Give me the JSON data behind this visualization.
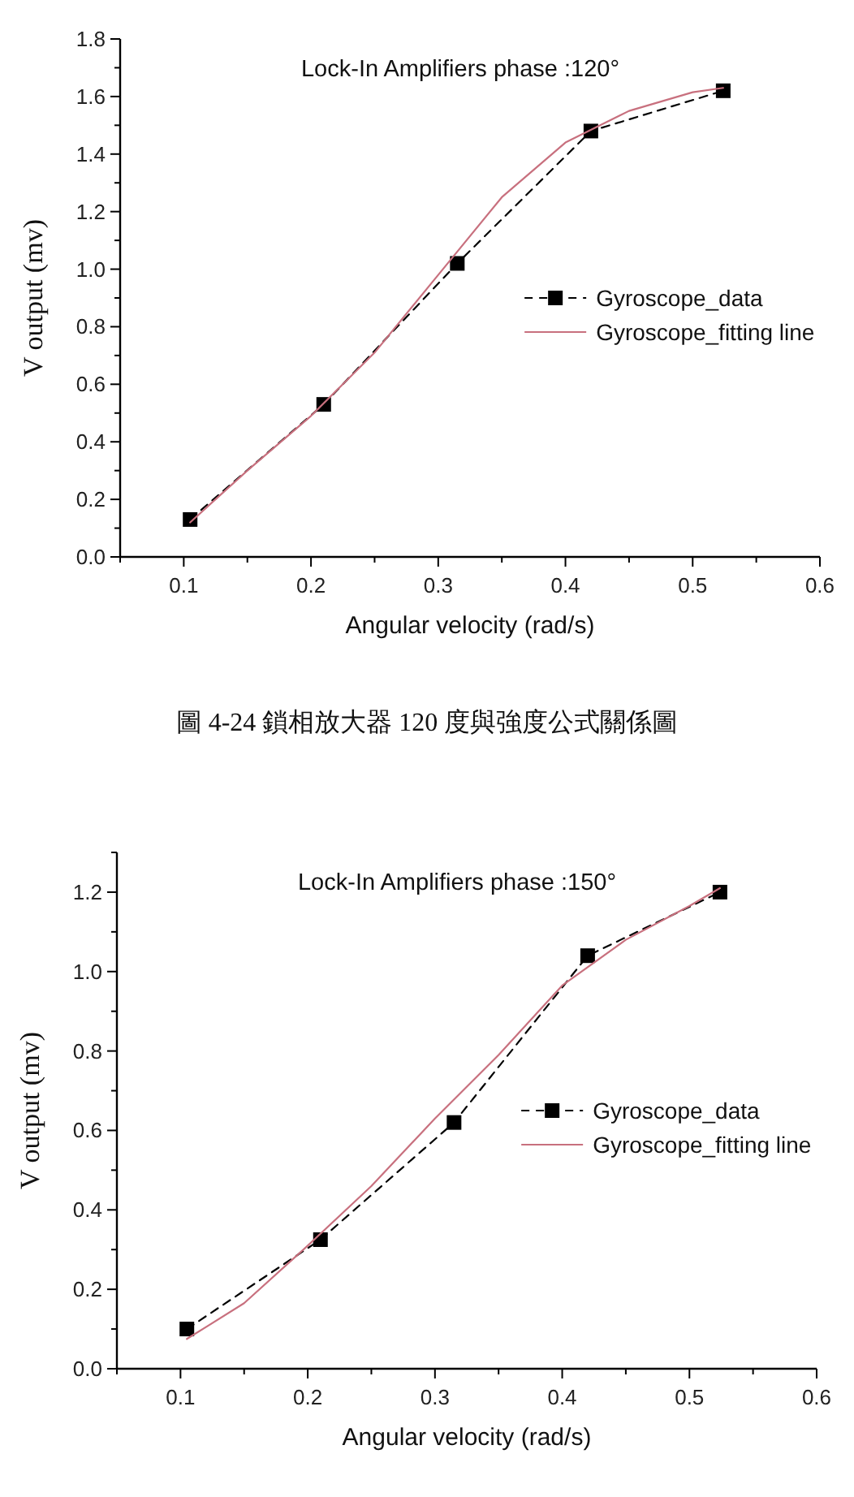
{
  "chart_data": [
    {
      "type": "line",
      "title": "Lock-In Amplifiers phase :120°",
      "xlabel": "Angular velocity (rad/s)",
      "ylabel": "V output (mv)",
      "legend": "right",
      "xlim": [
        0.05,
        0.6
      ],
      "xticks": [
        {
          "value": 0.05,
          "label": null
        },
        0.1,
        {
          "value": 0.15,
          "label": null
        },
        0.2,
        {
          "value": 0.25,
          "label": null
        },
        0.3,
        {
          "value": 0.35,
          "label": null
        },
        0.4,
        {
          "value": 0.45,
          "label": null
        },
        0.5,
        {
          "value": 0.55,
          "label": null
        },
        0.6
      ],
      "ylim": [
        0,
        1.8
      ],
      "yticks": [
        {
          "value": 0,
          "label": "0.0"
        },
        {
          "value": 0.1,
          "label": null
        },
        0.2,
        {
          "value": 0.3,
          "label": null
        },
        0.4,
        {
          "value": 0.5,
          "label": null
        },
        0.6,
        {
          "value": 0.7,
          "label": null
        },
        0.8,
        {
          "value": 0.9,
          "label": null
        },
        {
          "value": 1,
          "label": "1.0"
        },
        {
          "value": 1.1,
          "label": null
        },
        1.2,
        {
          "value": 1.3,
          "label": null
        },
        1.4,
        {
          "value": 1.5,
          "label": null
        },
        1.6,
        {
          "value": 1.7,
          "label": null
        },
        1.8
      ],
      "annotations": [
        "圖 4-24 鎖相放大器 120 度與強度公式關係圖"
      ],
      "series": [
        {
          "name": "Gyroscope_data",
          "color": "#000000",
          "marker": "square",
          "line_style": "dashed",
          "x": [
            0.105,
            0.21,
            0.315,
            0.42,
            0.524
          ],
          "values": [
            0.13,
            0.53,
            1.02,
            1.48,
            1.62
          ]
        },
        {
          "name": "Gyroscope_fitting line",
          "color": "#c8707e",
          "marker": "none",
          "line_style": "solid",
          "x": [
            0.105,
            0.15,
            0.2,
            0.25,
            0.3,
            0.35,
            0.4,
            0.45,
            0.5,
            0.524
          ],
          "values": [
            0.12,
            0.3,
            0.49,
            0.71,
            0.98,
            1.25,
            1.44,
            1.55,
            1.615,
            1.63
          ]
        }
      ]
    },
    {
      "type": "line",
      "title": "Lock-In Amplifiers phase :150°",
      "xlabel": "Angular velocity (rad/s)",
      "ylabel": "V output (mv)",
      "legend": "right",
      "xlim": [
        0.05,
        0.6
      ],
      "xticks": [
        {
          "value": 0.05,
          "label": null
        },
        0.1,
        {
          "value": 0.15,
          "label": null
        },
        0.2,
        {
          "value": 0.25,
          "label": null
        },
        0.3,
        {
          "value": 0.35,
          "label": null
        },
        0.4,
        {
          "value": 0.45,
          "label": null
        },
        0.5,
        {
          "value": 0.55,
          "label": null
        },
        0.6
      ],
      "ylim": [
        0,
        1.3
      ],
      "yticks": [
        {
          "value": 0,
          "label": "0.0"
        },
        {
          "value": 0.1,
          "label": null
        },
        0.2,
        {
          "value": 0.3,
          "label": null
        },
        0.4,
        {
          "value": 0.5,
          "label": null
        },
        0.6,
        {
          "value": 0.7,
          "label": null
        },
        0.8,
        {
          "value": 0.9,
          "label": null
        },
        {
          "value": 1,
          "label": "1.0"
        },
        {
          "value": 1.1,
          "label": null
        },
        1.2,
        {
          "value": 1.3,
          "label": null
        }
      ],
      "series": [
        {
          "name": "Gyroscope_data",
          "color": "#000000",
          "marker": "square",
          "line_style": "dashed",
          "x": [
            0.105,
            0.21,
            0.315,
            0.42,
            0.524
          ],
          "values": [
            0.1,
            0.325,
            0.62,
            1.04,
            1.2
          ]
        },
        {
          "name": "Gyroscope_fitting line",
          "color": "#c8707e",
          "marker": "none",
          "line_style": "solid",
          "x": [
            0.105,
            0.15,
            0.2,
            0.25,
            0.3,
            0.35,
            0.4,
            0.45,
            0.5,
            0.524
          ],
          "values": [
            0.075,
            0.165,
            0.31,
            0.46,
            0.63,
            0.79,
            0.965,
            1.08,
            1.165,
            1.21
          ]
        }
      ]
    }
  ]
}
